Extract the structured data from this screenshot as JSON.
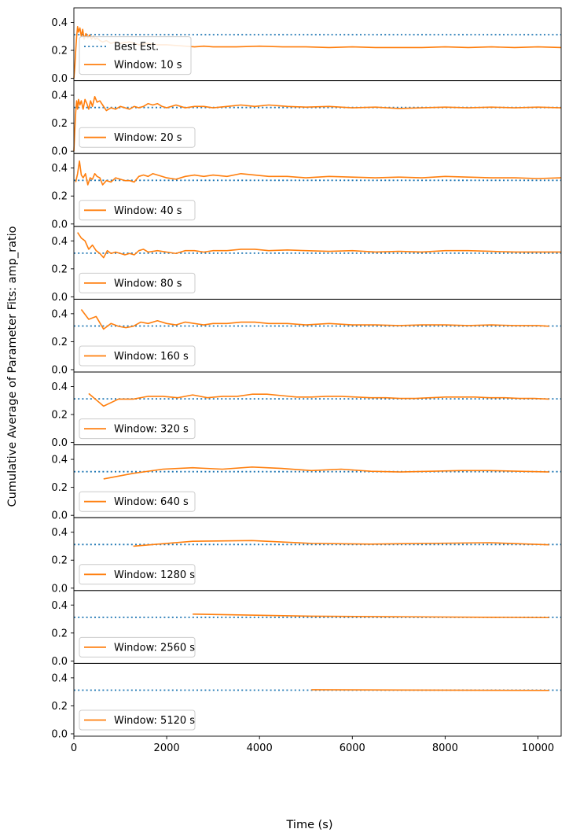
{
  "figure": {
    "ylabel": "Cumulative Average of Parameter Fits: amp_ratio",
    "xlabel": "Time (s)"
  },
  "chart_data": {
    "type": "line",
    "shared_x": true,
    "xlim": [
      0,
      10500
    ],
    "x_ticks": [
      0,
      2000,
      4000,
      6000,
      8000,
      10000
    ],
    "ylim": [
      0,
      0.47
    ],
    "y_ticks": [
      "0.0",
      "0.2",
      "0.4"
    ],
    "best_estimate": {
      "name": "Best Est.",
      "value": 0.312,
      "color": "#1f77b4",
      "style": "dotted"
    },
    "series_color": "#ff7f0e",
    "panels": [
      {
        "name": "Window: 10 s",
        "show_best_in_legend": true,
        "x": [
          0,
          20,
          40,
          60,
          80,
          100,
          130,
          160,
          190,
          220,
          260,
          300,
          340,
          380,
          420,
          460,
          500,
          560,
          620,
          700,
          800,
          900,
          1000,
          1200,
          1400,
          1600,
          1800,
          2000,
          2200,
          2400,
          2600,
          2800,
          3000,
          3500,
          4000,
          4500,
          5000,
          5500,
          6000,
          6500,
          7000,
          7500,
          8000,
          8500,
          9000,
          9500,
          10000,
          10500
        ],
        "y": [
          0.0,
          0.08,
          0.2,
          0.3,
          0.37,
          0.33,
          0.36,
          0.3,
          0.35,
          0.28,
          0.32,
          0.29,
          0.31,
          0.28,
          0.3,
          0.28,
          0.29,
          0.27,
          0.26,
          0.27,
          0.25,
          0.26,
          0.25,
          0.26,
          0.24,
          0.25,
          0.24,
          0.24,
          0.235,
          0.23,
          0.225,
          0.23,
          0.225,
          0.225,
          0.23,
          0.225,
          0.225,
          0.22,
          0.225,
          0.22,
          0.22,
          0.22,
          0.225,
          0.22,
          0.225,
          0.22,
          0.225,
          0.22
        ]
      },
      {
        "name": "Window: 20 s",
        "show_best_in_legend": false,
        "x": [
          0,
          20,
          40,
          60,
          80,
          100,
          130,
          160,
          200,
          240,
          280,
          320,
          360,
          400,
          450,
          500,
          560,
          620,
          700,
          800,
          900,
          1000,
          1100,
          1200,
          1300,
          1400,
          1500,
          1600,
          1700,
          1800,
          1900,
          2000,
          2200,
          2400,
          2600,
          2800,
          3000,
          3300,
          3600,
          3900,
          4200,
          4600,
          5000,
          5500,
          6000,
          6500,
          7000,
          7500,
          8000,
          8500,
          9000,
          9500,
          10000,
          10500
        ],
        "y": [
          0.0,
          0.15,
          0.28,
          0.36,
          0.3,
          0.37,
          0.33,
          0.36,
          0.3,
          0.37,
          0.34,
          0.3,
          0.36,
          0.32,
          0.39,
          0.35,
          0.36,
          0.33,
          0.29,
          0.31,
          0.3,
          0.32,
          0.31,
          0.3,
          0.32,
          0.31,
          0.32,
          0.34,
          0.33,
          0.34,
          0.32,
          0.31,
          0.33,
          0.31,
          0.32,
          0.32,
          0.31,
          0.32,
          0.33,
          0.32,
          0.33,
          0.32,
          0.315,
          0.32,
          0.31,
          0.315,
          0.305,
          0.31,
          0.315,
          0.31,
          0.315,
          0.31,
          0.315,
          0.31
        ]
      },
      {
        "name": "Window: 40 s",
        "show_best_in_legend": false,
        "x": [
          40,
          80,
          120,
          160,
          200,
          250,
          300,
          350,
          400,
          450,
          500,
          560,
          620,
          700,
          800,
          900,
          1000,
          1100,
          1200,
          1300,
          1400,
          1500,
          1600,
          1700,
          1800,
          2000,
          2200,
          2400,
          2600,
          2800,
          3000,
          3300,
          3600,
          3900,
          4200,
          4600,
          5000,
          5500,
          6000,
          6500,
          7000,
          7500,
          8000,
          8500,
          9000,
          9500,
          10000,
          10500
        ],
        "y": [
          0.3,
          0.36,
          0.45,
          0.35,
          0.33,
          0.36,
          0.28,
          0.33,
          0.32,
          0.36,
          0.34,
          0.33,
          0.28,
          0.31,
          0.3,
          0.33,
          0.32,
          0.31,
          0.31,
          0.3,
          0.34,
          0.35,
          0.34,
          0.36,
          0.35,
          0.33,
          0.32,
          0.34,
          0.35,
          0.34,
          0.35,
          0.34,
          0.36,
          0.35,
          0.34,
          0.34,
          0.33,
          0.34,
          0.335,
          0.33,
          0.335,
          0.33,
          0.34,
          0.335,
          0.33,
          0.33,
          0.325,
          0.33
        ]
      },
      {
        "name": "Window: 80 s",
        "show_best_in_legend": false,
        "x": [
          80,
          160,
          240,
          320,
          400,
          480,
          560,
          640,
          720,
          800,
          900,
          1000,
          1100,
          1200,
          1300,
          1400,
          1500,
          1600,
          1800,
          2000,
          2200,
          2400,
          2600,
          2800,
          3000,
          3300,
          3600,
          3900,
          4200,
          4600,
          5000,
          5500,
          6000,
          6500,
          7000,
          7500,
          8000,
          8500,
          9000,
          9500,
          10000,
          10500
        ],
        "y": [
          0.46,
          0.42,
          0.4,
          0.34,
          0.37,
          0.33,
          0.31,
          0.28,
          0.33,
          0.31,
          0.32,
          0.31,
          0.3,
          0.31,
          0.3,
          0.33,
          0.34,
          0.32,
          0.33,
          0.32,
          0.31,
          0.33,
          0.33,
          0.32,
          0.33,
          0.33,
          0.34,
          0.34,
          0.33,
          0.335,
          0.33,
          0.325,
          0.33,
          0.32,
          0.325,
          0.32,
          0.33,
          0.33,
          0.325,
          0.32,
          0.32,
          0.32
        ]
      },
      {
        "name": "Window: 160 s",
        "show_best_in_legend": false,
        "x": [
          160,
          320,
          480,
          640,
          800,
          960,
          1120,
          1280,
          1440,
          1600,
          1800,
          2000,
          2200,
          2400,
          2600,
          2800,
          3000,
          3300,
          3600,
          3900,
          4200,
          4600,
          5000,
          5500,
          6000,
          6500,
          7000,
          7500,
          8000,
          8500,
          9000,
          9500,
          10000,
          10240
        ],
        "y": [
          0.43,
          0.36,
          0.38,
          0.29,
          0.33,
          0.31,
          0.3,
          0.31,
          0.34,
          0.33,
          0.35,
          0.33,
          0.32,
          0.34,
          0.33,
          0.32,
          0.33,
          0.33,
          0.34,
          0.34,
          0.33,
          0.33,
          0.32,
          0.33,
          0.32,
          0.32,
          0.315,
          0.32,
          0.32,
          0.315,
          0.32,
          0.315,
          0.315,
          0.31
        ]
      },
      {
        "name": "Window: 320 s",
        "show_best_in_legend": false,
        "x": [
          320,
          640,
          960,
          1280,
          1600,
          1920,
          2240,
          2560,
          2880,
          3200,
          3520,
          3840,
          4160,
          4480,
          4800,
          5120,
          5440,
          5760,
          6080,
          6400,
          6720,
          7040,
          7360,
          7680,
          8000,
          8320,
          8640,
          8960,
          9280,
          9600,
          9920,
          10240
        ],
        "y": [
          0.35,
          0.26,
          0.31,
          0.31,
          0.33,
          0.33,
          0.32,
          0.34,
          0.32,
          0.33,
          0.33,
          0.345,
          0.345,
          0.335,
          0.325,
          0.325,
          0.33,
          0.33,
          0.325,
          0.32,
          0.32,
          0.315,
          0.315,
          0.32,
          0.325,
          0.325,
          0.325,
          0.32,
          0.32,
          0.315,
          0.315,
          0.31
        ]
      },
      {
        "name": "Window: 640 s",
        "show_best_in_legend": false,
        "x": [
          640,
          1280,
          1920,
          2560,
          3200,
          3840,
          4480,
          5120,
          5760,
          6400,
          7040,
          7680,
          8320,
          8960,
          9600,
          10240
        ],
        "y": [
          0.26,
          0.3,
          0.33,
          0.34,
          0.33,
          0.345,
          0.335,
          0.32,
          0.33,
          0.315,
          0.31,
          0.315,
          0.32,
          0.32,
          0.315,
          0.31
        ]
      },
      {
        "name": "Window: 1280 s",
        "show_best_in_legend": false,
        "x": [
          1280,
          2560,
          3840,
          5120,
          6400,
          7680,
          8960,
          10240
        ],
        "y": [
          0.3,
          0.335,
          0.34,
          0.32,
          0.315,
          0.32,
          0.325,
          0.31
        ]
      },
      {
        "name": "Window: 2560 s",
        "show_best_in_legend": false,
        "x": [
          2560,
          5120,
          7680,
          10240
        ],
        "y": [
          0.335,
          0.32,
          0.315,
          0.31
        ]
      },
      {
        "name": "Window: 5120 s",
        "show_best_in_legend": false,
        "x": [
          5120,
          10240
        ],
        "y": [
          0.315,
          0.31
        ]
      }
    ]
  }
}
